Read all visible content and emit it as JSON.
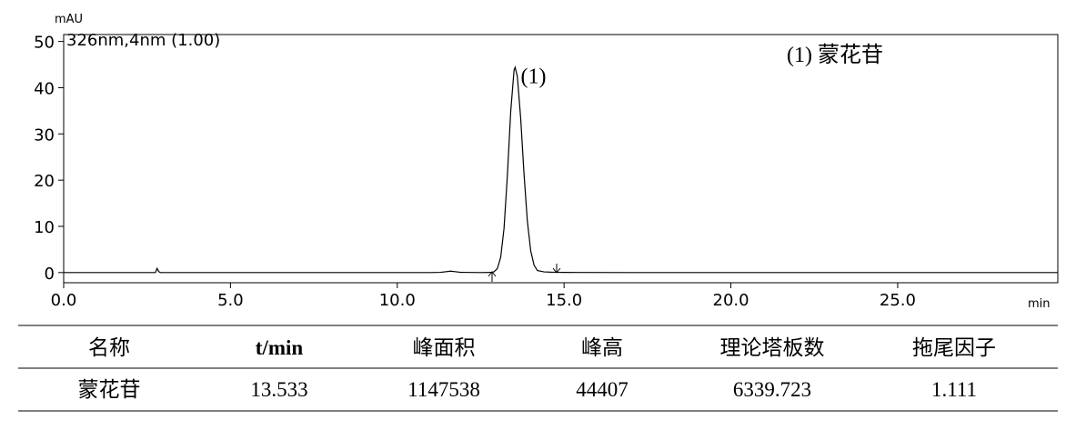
{
  "chart_data": {
    "type": "line",
    "y_unit": "mAU",
    "x_unit": "min",
    "title": "326nm,4nm (1.00)",
    "peak_label": "(1)",
    "peak_label_at": [
      13.7,
      41
    ],
    "legend": "(1)  蒙花苷",
    "color": "#000000",
    "x": [
      0,
      1,
      2,
      2.7,
      2.75,
      2.8,
      2.85,
      2.9,
      3.0,
      4,
      6,
      8,
      10,
      11,
      11.3,
      11.6,
      11.9,
      12.5,
      12.8,
      12.9,
      13.0,
      13.1,
      13.2,
      13.3,
      13.4,
      13.5,
      13.533,
      13.6,
      13.7,
      13.8,
      13.9,
      14.0,
      14.1,
      14.2,
      14.4,
      14.6,
      14.85,
      15,
      17,
      20,
      25,
      29.8
    ],
    "values": [
      0,
      0,
      0,
      0,
      0,
      0.9,
      0.2,
      0,
      0,
      0,
      0,
      0,
      0,
      0,
      0.05,
      0.3,
      0.05,
      0,
      0.03,
      0.17,
      0.87,
      3.3,
      9.56,
      20.93,
      34.76,
      43.75,
      44.41,
      42.4,
      33.3,
      21.3,
      11.1,
      4.7,
      1.6,
      0.45,
      0.15,
      0.08,
      0.05,
      0.03,
      0,
      0,
      0,
      0
    ],
    "xlim": [
      0,
      29.8
    ],
    "ylim": [
      -2.2,
      51.5
    ],
    "xticks": [
      {
        "value": 0,
        "label": "0.0"
      },
      {
        "value": 5,
        "label": "5.0"
      },
      {
        "value": 10,
        "label": "10.0"
      },
      {
        "value": 15,
        "label": "15.0"
      },
      {
        "value": 20,
        "label": "20.0"
      },
      {
        "value": 25,
        "label": "25.0"
      }
    ],
    "yticks": [
      0,
      10,
      20,
      30,
      40,
      50
    ]
  },
  "table": {
    "header": [
      "名称",
      "t/min",
      "峰面积",
      "峰高",
      "理论塔板数",
      "拖尾因子"
    ],
    "rows": [
      [
        "蒙花苷",
        "13.533",
        "1147538",
        "44407",
        "6339.723",
        "1.111"
      ]
    ]
  }
}
